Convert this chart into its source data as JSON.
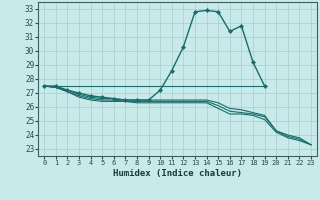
{
  "xlabel": "Humidex (Indice chaleur)",
  "xlim": [
    -0.5,
    23.5
  ],
  "ylim": [
    22.5,
    33.5
  ],
  "xticks": [
    0,
    1,
    2,
    3,
    4,
    5,
    6,
    7,
    8,
    9,
    10,
    11,
    12,
    13,
    14,
    15,
    16,
    17,
    18,
    19,
    20,
    21,
    22,
    23
  ],
  "yticks": [
    23,
    24,
    25,
    26,
    27,
    28,
    29,
    30,
    31,
    32,
    33
  ],
  "bg_color": "#c8eaea",
  "grid_color": "#a8cccc",
  "line_color": "#1a6b6b",
  "curves": [
    {
      "x": [
        0,
        1,
        2,
        3,
        4,
        5,
        6,
        7,
        8,
        9,
        10,
        11,
        12,
        13,
        14,
        15,
        16,
        17,
        18,
        19
      ],
      "y": [
        27.5,
        27.5,
        27.2,
        27.0,
        26.8,
        26.7,
        26.6,
        26.5,
        26.5,
        26.5,
        27.2,
        28.6,
        30.3,
        32.8,
        32.9,
        32.8,
        31.4,
        31.8,
        29.2,
        27.5
      ],
      "marker": true,
      "lw": 1.0
    },
    {
      "x": [
        0,
        19
      ],
      "y": [
        27.5,
        27.5
      ],
      "marker": false,
      "lw": 0.8
    },
    {
      "x": [
        0,
        1,
        2,
        3,
        4,
        5,
        6,
        7,
        8,
        9,
        10,
        11,
        12,
        13,
        14,
        15,
        16,
        17,
        18,
        19,
        20,
        21,
        22,
        23
      ],
      "y": [
        27.5,
        27.4,
        27.2,
        26.9,
        26.7,
        26.6,
        26.6,
        26.5,
        26.5,
        26.5,
        26.5,
        26.5,
        26.5,
        26.5,
        26.5,
        26.3,
        25.9,
        25.8,
        25.6,
        25.4,
        24.3,
        24.0,
        23.8,
        23.3
      ],
      "marker": false,
      "lw": 0.8
    },
    {
      "x": [
        0,
        1,
        2,
        3,
        4,
        5,
        6,
        7,
        8,
        9,
        10,
        11,
        12,
        13,
        14,
        15,
        16,
        17,
        18,
        19,
        20,
        21,
        22,
        23
      ],
      "y": [
        27.5,
        27.4,
        27.1,
        26.8,
        26.6,
        26.5,
        26.5,
        26.4,
        26.4,
        26.4,
        26.4,
        26.4,
        26.4,
        26.4,
        26.4,
        26.1,
        25.7,
        25.6,
        25.5,
        25.3,
        24.3,
        23.9,
        23.7,
        23.3
      ],
      "marker": false,
      "lw": 0.8
    },
    {
      "x": [
        0,
        1,
        2,
        3,
        4,
        5,
        6,
        7,
        8,
        9,
        10,
        11,
        12,
        13,
        14,
        15,
        16,
        17,
        18,
        19,
        20,
        21,
        22,
        23
      ],
      "y": [
        27.5,
        27.4,
        27.1,
        26.7,
        26.5,
        26.4,
        26.4,
        26.4,
        26.3,
        26.3,
        26.3,
        26.3,
        26.3,
        26.3,
        26.3,
        25.9,
        25.5,
        25.5,
        25.4,
        25.1,
        24.2,
        23.8,
        23.6,
        23.3
      ],
      "marker": false,
      "lw": 0.8
    }
  ]
}
